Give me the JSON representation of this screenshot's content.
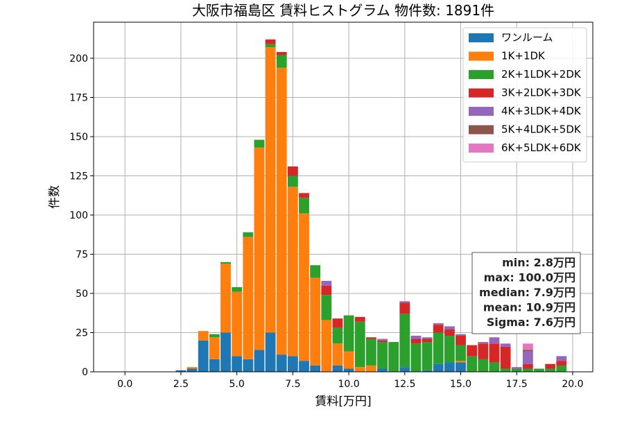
{
  "chart_data": {
    "type": "bar",
    "stacked": true,
    "title": "大阪市福島区 賃料ヒストグラム  物件数: 1891件",
    "xlabel": "賃料[万円]",
    "ylabel": "件数",
    "xlim": [
      -1.4,
      20.9
    ],
    "ylim": [
      0,
      223
    ],
    "bin_width": 0.5,
    "x_ticks": [
      0.0,
      2.5,
      5.0,
      7.5,
      10.0,
      12.5,
      15.0,
      17.5,
      20.0
    ],
    "x_tick_labels": [
      "0.0",
      "2.5",
      "5.0",
      "7.5",
      "10.0",
      "12.5",
      "15.0",
      "17.5",
      "20.0"
    ],
    "y_ticks": [
      0,
      25,
      50,
      75,
      100,
      125,
      150,
      175,
      200
    ],
    "y_tick_labels": [
      "0",
      "25",
      "50",
      "75",
      "100",
      "125",
      "150",
      "175",
      "200"
    ],
    "grid": true,
    "legend_position": "top-right",
    "x": [
      2.0,
      2.5,
      3.0,
      3.5,
      4.0,
      4.5,
      5.0,
      5.5,
      6.0,
      6.5,
      7.0,
      7.5,
      8.0,
      8.5,
      9.0,
      9.5,
      10.0,
      10.5,
      11.0,
      11.5,
      12.0,
      12.5,
      13.0,
      13.5,
      14.0,
      14.5,
      15.0,
      15.5,
      16.0,
      16.5,
      17.0,
      17.5,
      18.0,
      18.5,
      19.0,
      19.5
    ],
    "series": [
      {
        "name": "ワンルーム",
        "color": "#1f77b4",
        "values": [
          0,
          1,
          2,
          20,
          8,
          25,
          10,
          8,
          14,
          25,
          11,
          10,
          7,
          4,
          0,
          4,
          2,
          0,
          0,
          2,
          0,
          3,
          0,
          1,
          5,
          6,
          6,
          0,
          0,
          0,
          0,
          0,
          0,
          0,
          0,
          0
        ]
      },
      {
        "name": "1K+1DK",
        "color": "#ff7f0e",
        "values": [
          0,
          0,
          1,
          6,
          14,
          44,
          41,
          78,
          129,
          182,
          183,
          108,
          94,
          56,
          33,
          14,
          11,
          3,
          4,
          0,
          0,
          0,
          0,
          0,
          0,
          0,
          1,
          0,
          0,
          0,
          0,
          0,
          0,
          0,
          0,
          0
        ]
      },
      {
        "name": "2K+1LDK+2DK",
        "color": "#2ca02c",
        "values": [
          0,
          0,
          0,
          0,
          2,
          1,
          3,
          3,
          5,
          2,
          8,
          7,
          10,
          8,
          16,
          10,
          23,
          29,
          17,
          17,
          19,
          34,
          18,
          18,
          20,
          17,
          10,
          10,
          8,
          6,
          2,
          2,
          2,
          2,
          2,
          4
        ]
      },
      {
        "name": "3K+2LDK+3DK",
        "color": "#d62728",
        "values": [
          0,
          0,
          0,
          0,
          0,
          0,
          0,
          0,
          0,
          3,
          2,
          6,
          3,
          0,
          6,
          6,
          0,
          3,
          1,
          1,
          0,
          7,
          3,
          2,
          5,
          4,
          6,
          7,
          10,
          12,
          14,
          0,
          3,
          0,
          3,
          3
        ]
      },
      {
        "name": "4K+3LDK+4DK",
        "color": "#9467bd",
        "values": [
          0,
          0,
          0,
          0,
          0,
          0,
          0,
          0,
          0,
          0,
          0,
          0,
          0,
          0,
          3,
          0,
          0,
          0,
          0,
          1,
          0,
          1,
          2,
          1,
          1,
          2,
          1,
          0,
          1,
          4,
          2,
          1,
          8,
          0,
          0,
          3
        ]
      },
      {
        "name": "5K+4LDK+5DK",
        "color": "#8c564b",
        "values": [
          0,
          0,
          0,
          0,
          0,
          0,
          0,
          0,
          0,
          0,
          0,
          0,
          0,
          0,
          0,
          0,
          0,
          0,
          0,
          0,
          0,
          0,
          0,
          0,
          0,
          0,
          0,
          0,
          0,
          0,
          0,
          0,
          1,
          0,
          0,
          0
        ]
      },
      {
        "name": "6K+5LDK+6DK",
        "color": "#e377c2",
        "values": [
          0,
          0,
          0,
          0,
          0,
          0,
          0,
          0,
          0,
          0,
          0,
          0,
          0,
          0,
          0,
          0,
          0,
          0,
          0,
          0,
          0,
          0,
          0,
          0,
          0,
          0,
          0,
          0,
          0,
          0,
          0,
          0,
          4,
          0,
          0,
          0
        ]
      }
    ],
    "stats_box": [
      "min: 2.8万円",
      "max: 100.0万円",
      "median: 7.9万円",
      "mean: 10.9万円",
      "Sigma: 7.6万円"
    ]
  }
}
